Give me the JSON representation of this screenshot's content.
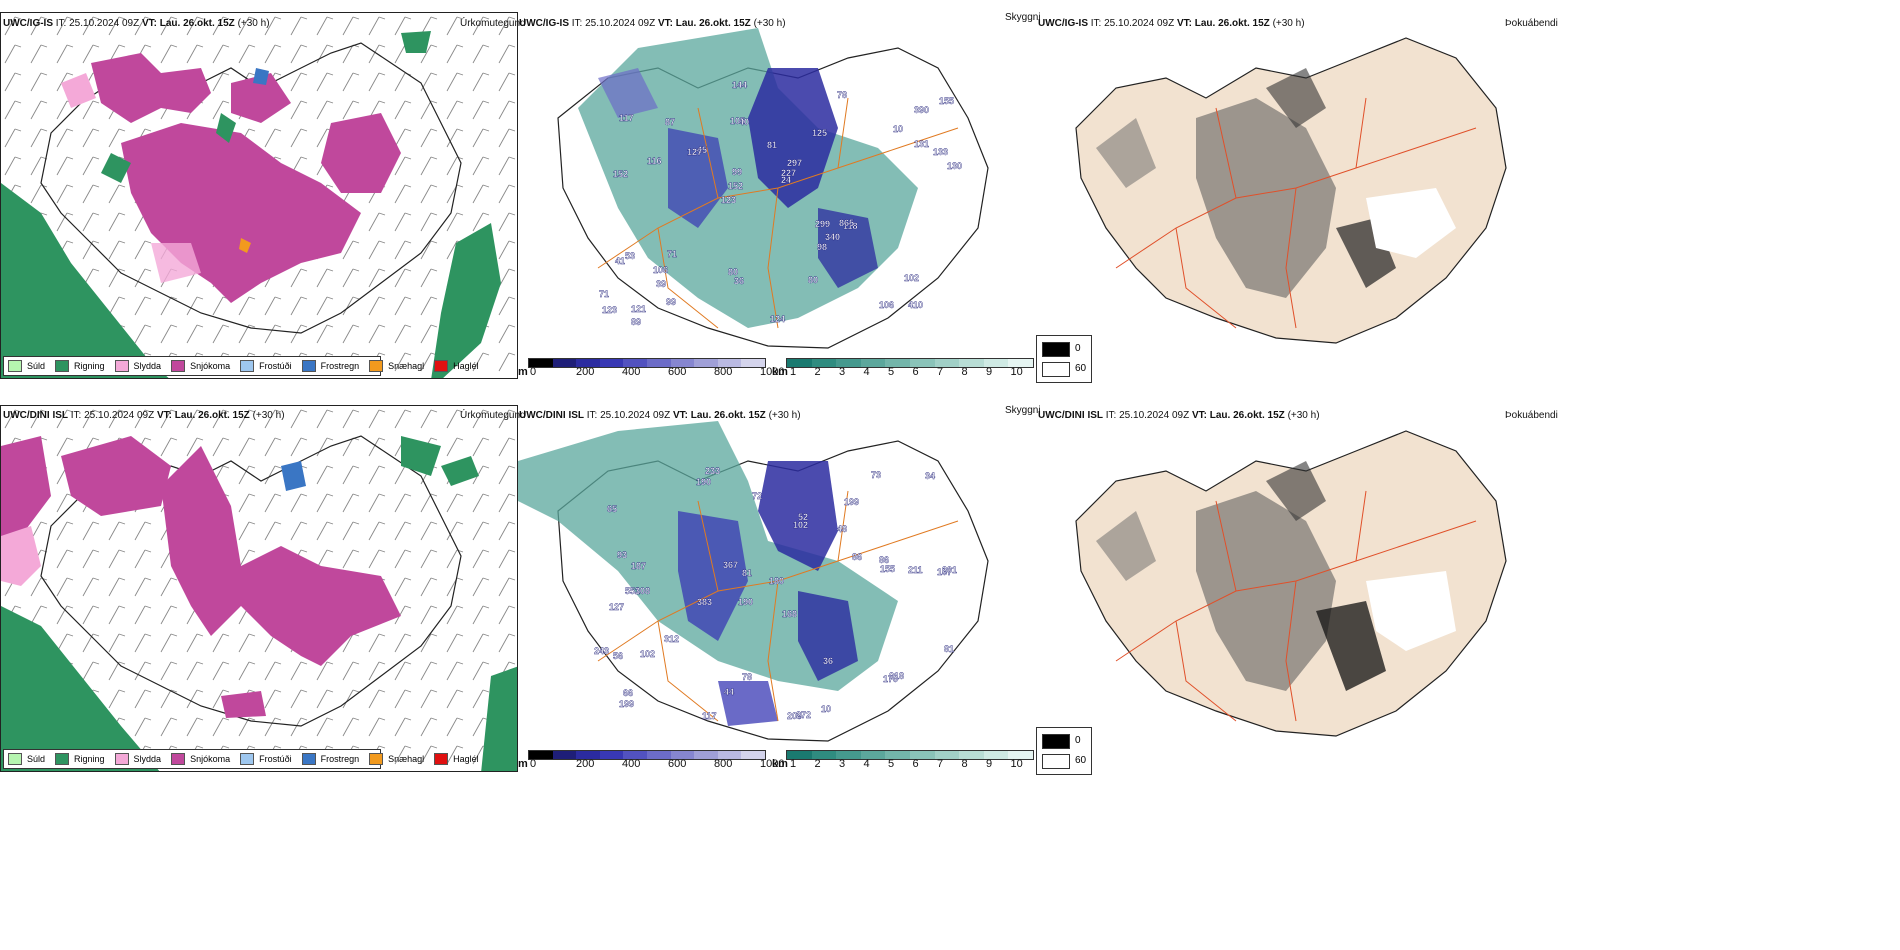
{
  "panels": {
    "precip_type": {
      "title": "Úrkomutegund",
      "legend": [
        {
          "label": "Súld",
          "color": "#b6f5b0"
        },
        {
          "label": "Rigning",
          "color": "#2e9460"
        },
        {
          "label": "Slydda",
          "color": "#f4a9d8"
        },
        {
          "label": "Snjókoma",
          "color": "#c0489c"
        },
        {
          "label": "Frostúði",
          "color": "#9ec7ef"
        },
        {
          "label": "Frostregn",
          "color": "#3a76c4"
        },
        {
          "label": "Snæhagl",
          "color": "#f29a1e"
        },
        {
          "label": "Haglél",
          "color": "#e01010"
        }
      ]
    },
    "visibility": {
      "title": "Skyggni",
      "height_unit": "m",
      "height_ticks": [
        "0",
        "200",
        "400",
        "600",
        "800",
        "1000"
      ],
      "height_colors": [
        "#000000",
        "#1e1e78",
        "#2b2ba0",
        "#3838b4",
        "#5252c0",
        "#6c6cc8",
        "#8686d0",
        "#a0a0d8",
        "#babae2",
        "#d4d4ec"
      ],
      "vis_unit": "km",
      "vis_ticks": [
        "1",
        "2",
        "3",
        "4",
        "5",
        "6",
        "7",
        "8",
        "9",
        "10"
      ],
      "vis_colors": [
        "#1a7a70",
        "#2f8c80",
        "#45998e",
        "#5ca79c",
        "#73b5aa",
        "#8ac3b9",
        "#a1d0c7",
        "#b8ddd5",
        "#cfeae4",
        "#e6f5f2"
      ]
    },
    "fog": {
      "title": "Þokuábendi",
      "legend_values": [
        "0",
        "60"
      ]
    }
  },
  "rows": [
    {
      "model": "UWC/IG-IS",
      "it_label": "IT:",
      "it_value": "25.10.2024 09Z",
      "vt_label": "VT:",
      "vt_value": "Lau. 26.okt. 15Z",
      "lead": "(+30 h)",
      "cloud_labels": [
        "410",
        "152",
        "390",
        "123",
        "125",
        "121",
        "105",
        "81",
        "53",
        "45",
        "71",
        "39",
        "40",
        "297",
        "118",
        "117",
        "144",
        "130",
        "299",
        "131",
        "152",
        "80",
        "99",
        "87",
        "78",
        "71",
        "106",
        "102",
        "865",
        "124",
        "127",
        "116",
        "98",
        "99",
        "133",
        "227",
        "123",
        "36",
        "24",
        "41",
        "10",
        "155",
        "340",
        "80",
        "106",
        "89"
      ]
    },
    {
      "model": "UWC/DINI ISL",
      "it_label": "IT:",
      "it_value": "25.10.2024 09Z",
      "vt_label": "VT:",
      "vt_value": "Lau. 26.okt. 15Z",
      "lead": "(+30 h)",
      "cloud_labels": [
        "233",
        "199",
        "187",
        "190",
        "168",
        "108",
        "65",
        "48",
        "127",
        "102",
        "180",
        "199",
        "190",
        "383",
        "209",
        "272",
        "78",
        "73",
        "86",
        "312",
        "187",
        "553",
        "201",
        "211",
        "243",
        "93",
        "81",
        "155",
        "218",
        "56",
        "170",
        "52",
        "102",
        "367",
        "36",
        "81",
        "86",
        "44",
        "34",
        "72",
        "66",
        "117",
        "10"
      ]
    }
  ]
}
